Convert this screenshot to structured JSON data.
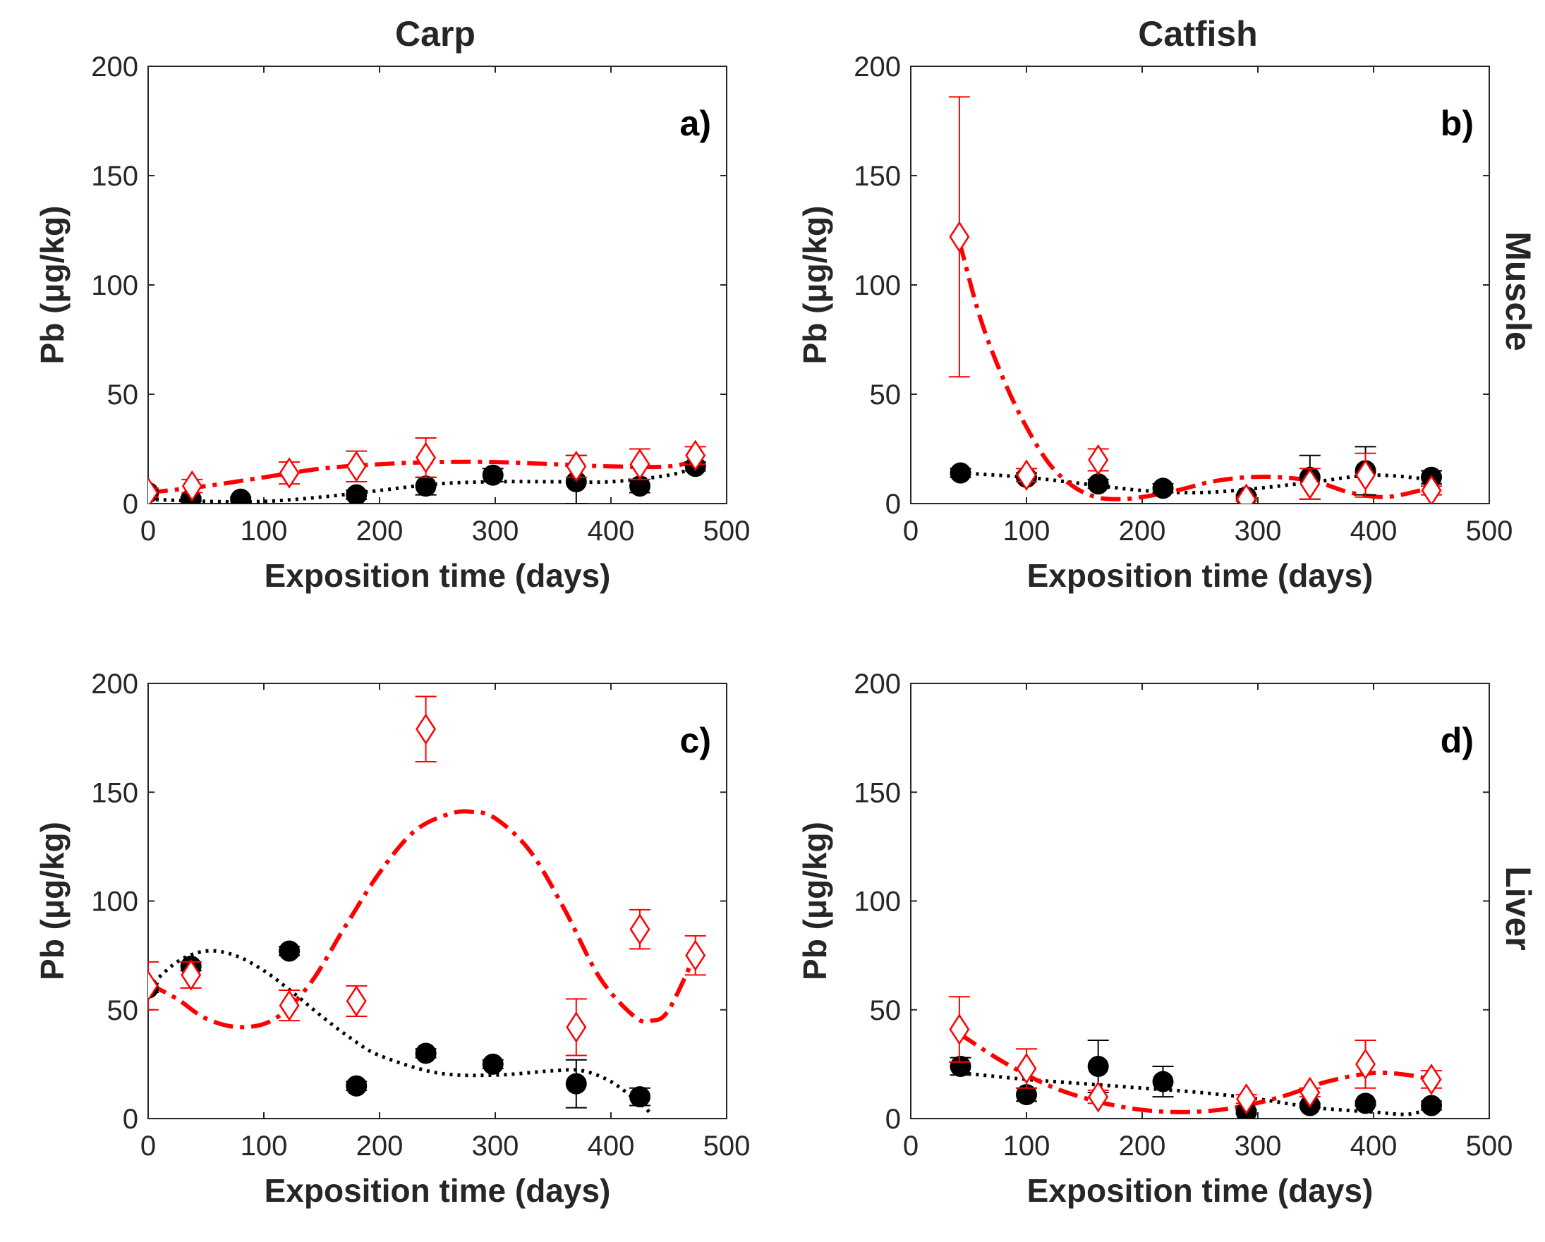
{
  "figure": {
    "column_titles": [
      "Carp",
      "Catfish"
    ],
    "row_titles": [
      "Muscle",
      "Liver"
    ]
  },
  "colors": {
    "black_series": "#000000",
    "red_series": "#ff0000",
    "axis": "#262626"
  },
  "chart_data": [
    {
      "type": "scatter",
      "panel_label": "a)",
      "species": "Carp",
      "tissue": "Muscle",
      "xlabel": "Exposition time (days)",
      "ylabel": "Pb (μg/kg)",
      "xlim": [
        0,
        500
      ],
      "ylim": [
        0,
        200
      ],
      "xticks": [
        0,
        100,
        200,
        300,
        400,
        500
      ],
      "yticks": [
        0,
        50,
        100,
        150,
        200
      ],
      "series": [
        {
          "name": "black circles",
          "marker": "filled-circle",
          "points": [
            {
              "x": 0,
              "y": 5,
              "err": 1
            },
            {
              "x": 37,
              "y": 2,
              "err": 1
            },
            {
              "x": 80,
              "y": 2,
              "err": 1
            },
            {
              "x": 180,
              "y": 4,
              "err": 2
            },
            {
              "x": 240,
              "y": 8,
              "err": 4
            },
            {
              "x": 298,
              "y": 13,
              "err": 3
            },
            {
              "x": 370,
              "y": 10,
              "err": 12
            },
            {
              "x": 425,
              "y": 8,
              "err": 3
            },
            {
              "x": 473,
              "y": 17,
              "err": 2
            }
          ],
          "fit": {
            "style": "dotted",
            "x": [
              0,
              50,
              100,
              150,
              200,
              250,
              300,
              350,
              400,
              450,
              475
            ],
            "y": [
              2,
              1,
              1,
              3,
              6,
              9,
              10,
              10,
              10,
              13,
              17
            ]
          }
        },
        {
          "name": "red diamonds",
          "marker": "open-diamond",
          "points": [
            {
              "x": 0,
              "y": 5,
              "err": 2
            },
            {
              "x": 38,
              "y": 8,
              "err": 3
            },
            {
              "x": 122,
              "y": 14,
              "err": 5
            },
            {
              "x": 180,
              "y": 17,
              "err": 7
            },
            {
              "x": 240,
              "y": 21,
              "err": 9
            },
            {
              "x": 370,
              "y": 17,
              "err": 5
            },
            {
              "x": 425,
              "y": 18,
              "err": 7
            },
            {
              "x": 473,
              "y": 22,
              "err": 4
            }
          ],
          "fit": {
            "style": "dashed",
            "x": [
              0,
              50,
              100,
              150,
              200,
              250,
              300,
              350,
              400,
              450,
              475
            ],
            "y": [
              5,
              8,
              12,
              16,
              18,
              19,
              19,
              18,
              17,
              17,
              20
            ]
          }
        }
      ]
    },
    {
      "type": "scatter",
      "panel_label": "b)",
      "species": "Catfish",
      "tissue": "Muscle",
      "xlabel": "Exposition time (days)",
      "ylabel": "Pb (μg/kg)",
      "xlim": [
        0,
        500
      ],
      "ylim": [
        0,
        200
      ],
      "xticks": [
        0,
        100,
        200,
        300,
        400,
        500
      ],
      "yticks": [
        0,
        50,
        100,
        150,
        200
      ],
      "series": [
        {
          "name": "black circles",
          "marker": "filled-circle",
          "points": [
            {
              "x": 43,
              "y": 14,
              "err": 2
            },
            {
              "x": 100,
              "y": 12,
              "err": 2
            },
            {
              "x": 162,
              "y": 9,
              "err": 2
            },
            {
              "x": 218,
              "y": 7,
              "err": 2
            },
            {
              "x": 290,
              "y": 3,
              "err": 1
            },
            {
              "x": 345,
              "y": 12,
              "err": 10
            },
            {
              "x": 393,
              "y": 15,
              "err": 11
            },
            {
              "x": 450,
              "y": 12,
              "err": 3
            }
          ],
          "fit": {
            "style": "dotted",
            "x": [
              43,
              100,
              150,
              200,
              250,
              300,
              350,
              400,
              450
            ],
            "y": [
              14,
              12,
              9,
              6,
              5,
              7,
              10,
              13,
              11
            ]
          }
        },
        {
          "name": "red diamonds",
          "marker": "open-diamond",
          "points": [
            {
              "x": 42,
              "y": 122,
              "err": 64
            },
            {
              "x": 100,
              "y": 13,
              "err": 3
            },
            {
              "x": 162,
              "y": 20,
              "err": 5
            },
            {
              "x": 290,
              "y": 2,
              "err": 1
            },
            {
              "x": 345,
              "y": 9,
              "err": 7
            },
            {
              "x": 393,
              "y": 13,
              "err": 10
            },
            {
              "x": 450,
              "y": 6,
              "err": 2
            }
          ],
          "fit": {
            "style": "dashed",
            "x": [
              42,
              60,
              80,
              100,
              120,
              140,
              160,
              180,
              200,
              230,
              260,
              290,
              320,
              350,
              380,
              410,
              440,
              450
            ],
            "y": [
              120,
              85,
              57,
              35,
              18,
              8,
              3,
              2,
              3,
              6,
              10,
              12,
              12,
              10,
              5,
              3,
              6,
              8
            ]
          }
        }
      ]
    },
    {
      "type": "scatter",
      "panel_label": "c)",
      "species": "Carp",
      "tissue": "Liver",
      "xlabel": "Exposition time (days)",
      "ylabel": "Pb (μg/kg)",
      "xlim": [
        0,
        500
      ],
      "ylim": [
        0,
        200
      ],
      "xticks": [
        0,
        100,
        200,
        300,
        400,
        500
      ],
      "yticks": [
        0,
        50,
        100,
        150,
        200
      ],
      "series": [
        {
          "name": "black circles",
          "marker": "filled-circle",
          "points": [
            {
              "x": 0,
              "y": 60,
              "err": 2
            },
            {
              "x": 37,
              "y": 70,
              "err": 2
            },
            {
              "x": 122,
              "y": 77,
              "err": 2
            },
            {
              "x": 180,
              "y": 15,
              "err": 2
            },
            {
              "x": 240,
              "y": 30,
              "err": 2
            },
            {
              "x": 298,
              "y": 25,
              "err": 2
            },
            {
              "x": 370,
              "y": 16,
              "err": 11
            },
            {
              "x": 425,
              "y": 10,
              "err": 4
            }
          ],
          "fit": {
            "style": "dotted",
            "x": [
              0,
              25,
              50,
              75,
              100,
              125,
              150,
              175,
              200,
              250,
              300,
              350,
              375,
              400,
              425,
              435
            ],
            "y": [
              60,
              72,
              77,
              75,
              68,
              58,
              47,
              37,
              29,
              21,
              20,
              22,
              22,
              17,
              7,
              2
            ]
          }
        },
        {
          "name": "red diamonds",
          "marker": "open-diamond",
          "points": [
            {
              "x": 0,
              "y": 61,
              "err": 11
            },
            {
              "x": 37,
              "y": 66,
              "err": 6
            },
            {
              "x": 122,
              "y": 52,
              "err": 7
            },
            {
              "x": 180,
              "y": 54,
              "err": 7
            },
            {
              "x": 240,
              "y": 179,
              "err": 15
            },
            {
              "x": 370,
              "y": 42,
              "err": 13
            },
            {
              "x": 425,
              "y": 87,
              "err": 9
            },
            {
              "x": 473,
              "y": 75,
              "err": 9
            }
          ],
          "fit": {
            "style": "dashed",
            "x": [
              0,
              25,
              50,
              80,
              110,
              140,
              170,
              200,
              230,
              260,
              280,
              300,
              330,
              360,
              390,
              420,
              435,
              450,
              475
            ],
            "y": [
              62,
              55,
              46,
              42,
              46,
              62,
              88,
              113,
              132,
              140,
              141,
              138,
              123,
              96,
              65,
              47,
              45,
              50,
              78
            ]
          }
        }
      ]
    },
    {
      "type": "scatter",
      "panel_label": "d)",
      "species": "Catfish",
      "tissue": "Liver",
      "xlabel": "Exposition time (days)",
      "ylabel": "Pb (μg/kg)",
      "xlim": [
        0,
        500
      ],
      "ylim": [
        0,
        200
      ],
      "xticks": [
        0,
        100,
        200,
        300,
        400,
        500
      ],
      "yticks": [
        0,
        50,
        100,
        150,
        200
      ],
      "series": [
        {
          "name": "black circles",
          "marker": "filled-circle",
          "points": [
            {
              "x": 43,
              "y": 24,
              "err": 4
            },
            {
              "x": 100,
              "y": 11,
              "err": 3
            },
            {
              "x": 162,
              "y": 24,
              "err": 12
            },
            {
              "x": 218,
              "y": 17,
              "err": 7
            },
            {
              "x": 290,
              "y": 3,
              "err": 1
            },
            {
              "x": 345,
              "y": 6,
              "err": 1
            },
            {
              "x": 393,
              "y": 7,
              "err": 1
            },
            {
              "x": 450,
              "y": 6,
              "err": 2
            }
          ],
          "fit": {
            "style": "dotted",
            "x": [
              43,
              100,
              150,
              200,
              250,
              300,
              350,
              400,
              430,
              450
            ],
            "y": [
              21,
              18,
              16,
              14,
              12,
              9,
              5,
              3,
              2,
              5
            ]
          }
        },
        {
          "name": "red diamonds",
          "marker": "open-diamond",
          "points": [
            {
              "x": 42,
              "y": 41,
              "err": 15
            },
            {
              "x": 100,
              "y": 23,
              "err": 9
            },
            {
              "x": 162,
              "y": 10,
              "err": 3
            },
            {
              "x": 290,
              "y": 9,
              "err": 2
            },
            {
              "x": 345,
              "y": 12,
              "err": 2
            },
            {
              "x": 393,
              "y": 25,
              "err": 11
            },
            {
              "x": 450,
              "y": 18,
              "err": 4
            }
          ],
          "fit": {
            "style": "dashed",
            "x": [
              42,
              80,
              120,
              160,
              200,
              240,
              280,
              320,
              360,
              400,
              430,
              450
            ],
            "y": [
              39,
              26,
              15,
              8,
              4,
              3,
              5,
              10,
              17,
              21,
              20,
              18
            ]
          }
        }
      ]
    }
  ]
}
